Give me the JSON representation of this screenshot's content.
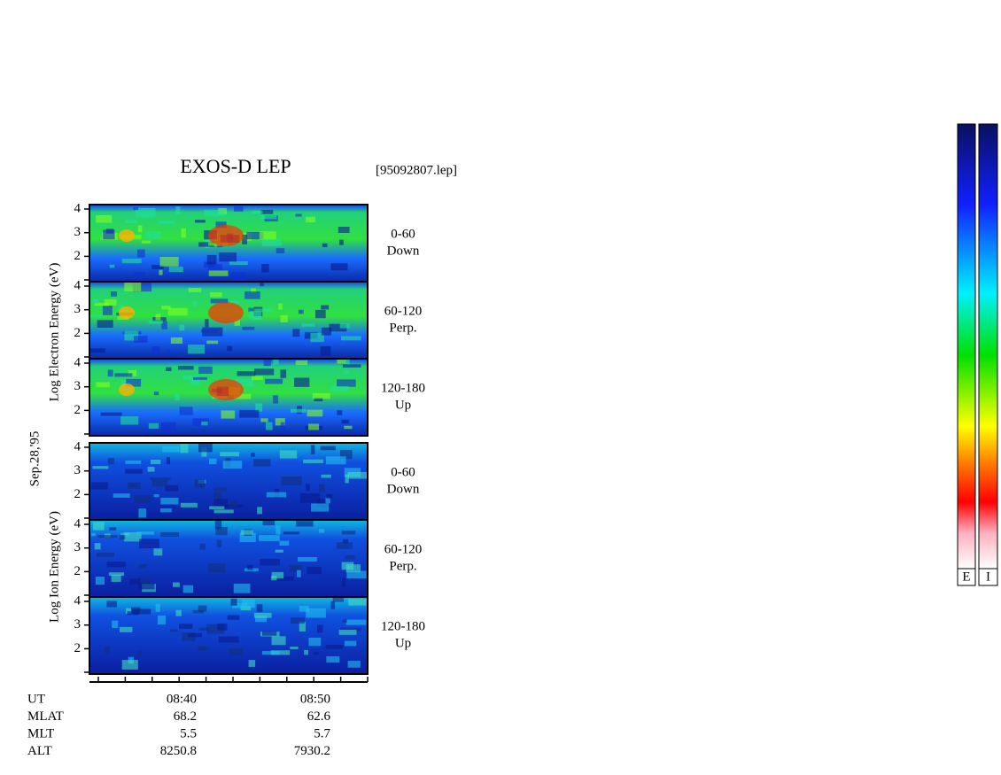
{
  "title": "EXOS-D LEP",
  "file": "[95092807.lep]",
  "date": "Sep.28,'95",
  "electron": {
    "axis_label": "Log Electron Energy (eV)",
    "panels": [
      {
        "label1": "0-60",
        "label2": "Down",
        "yticks": [
          4,
          3,
          2
        ]
      },
      {
        "label1": "60-120",
        "label2": "Perp.",
        "yticks": [
          4,
          3,
          2
        ]
      },
      {
        "label1": "120-180",
        "label2": "Up",
        "yticks": [
          4,
          3,
          2
        ]
      }
    ]
  },
  "ion": {
    "axis_label": "Log Ion Energy (eV)",
    "panels": [
      {
        "label1": "0-60",
        "label2": "Down",
        "yticks": [
          4,
          3,
          2
        ]
      },
      {
        "label1": "60-120",
        "label2": "Perp.",
        "yticks": [
          4,
          3,
          2
        ]
      },
      {
        "label1": "120-180",
        "label2": "Up",
        "yticks": [
          4,
          3,
          2
        ]
      }
    ]
  },
  "ephemeris": {
    "rows": [
      [
        "UT",
        "08:40",
        "08:50"
      ],
      [
        "MLAT",
        "68.2",
        "62.6"
      ],
      [
        "MLT",
        "5.5",
        "5.7"
      ],
      [
        "ALT",
        "8250.8",
        "7930.2"
      ]
    ]
  },
  "colorbar": {
    "labels": [
      "E",
      "I"
    ]
  }
}
